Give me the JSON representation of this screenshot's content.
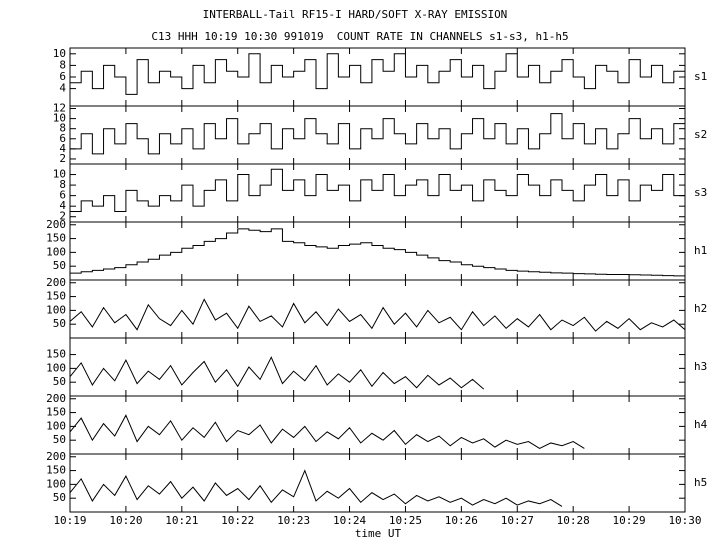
{
  "chart_data": [
    {
      "type": "step",
      "title": "INTERBALL-Tail RF15-I HARD/SOFT X-RAY EMISSION",
      "subtitle": "C13 HHH 10:19 10:30 991019  COUNT RATE IN CHANNELS s1-s3, h1-h5",
      "xlim": [
        0,
        11
      ],
      "ylim": [
        1,
        11
      ],
      "yticks": [
        4,
        6,
        8,
        10
      ],
      "x": [
        0,
        0.2,
        0.4,
        0.6,
        0.8,
        1,
        1.2,
        1.4,
        1.6,
        1.8,
        2,
        2.2,
        2.4,
        2.6,
        2.8,
        3,
        3.2,
        3.4,
        3.6,
        3.8,
        4,
        4.2,
        4.4,
        4.6,
        4.8,
        5,
        5.2,
        5.4,
        5.6,
        5.8,
        6,
        6.2,
        6.4,
        6.6,
        6.8,
        7,
        7.2,
        7.4,
        7.6,
        7.8,
        8,
        8.2,
        8.4,
        8.6,
        8.8,
        9,
        9.2,
        9.4,
        9.6,
        9.8,
        10,
        10.2,
        10.4,
        10.6,
        10.8,
        11
      ],
      "series": [
        {
          "name": "s1",
          "color": "#000000",
          "values": [
            5,
            7,
            4,
            8,
            6,
            3,
            9,
            5,
            7,
            6,
            4,
            8,
            5,
            9,
            7,
            6,
            10,
            5,
            8,
            6,
            7,
            9,
            4,
            10,
            6,
            8,
            5,
            9,
            7,
            10,
            6,
            8,
            5,
            7,
            9,
            6,
            8,
            4,
            7,
            10,
            6,
            8,
            5,
            7,
            9,
            6,
            4,
            8,
            7,
            5,
            9,
            6,
            8,
            5,
            7,
            10
          ]
        }
      ]
    },
    {
      "type": "step",
      "xlim": [
        0,
        11
      ],
      "ylim": [
        1,
        12.5
      ],
      "yticks": [
        2,
        4,
        6,
        8,
        10,
        12
      ],
      "x": [
        0,
        0.2,
        0.4,
        0.6,
        0.8,
        1,
        1.2,
        1.4,
        1.6,
        1.8,
        2,
        2.2,
        2.4,
        2.6,
        2.8,
        3,
        3.2,
        3.4,
        3.6,
        3.8,
        4,
        4.2,
        4.4,
        4.6,
        4.8,
        5,
        5.2,
        5.4,
        5.6,
        5.8,
        6,
        6.2,
        6.4,
        6.6,
        6.8,
        7,
        7.2,
        7.4,
        7.6,
        7.8,
        8,
        8.2,
        8.4,
        8.6,
        8.8,
        9,
        9.2,
        9.4,
        9.6,
        9.8,
        10,
        10.2,
        10.4,
        10.6,
        10.8,
        11
      ],
      "series": [
        {
          "name": "s2",
          "color": "#000000",
          "values": [
            4,
            7,
            3,
            8,
            5,
            9,
            6,
            3,
            7,
            5,
            8,
            4,
            9,
            6,
            10,
            5,
            7,
            9,
            4,
            8,
            6,
            10,
            7,
            5,
            9,
            4,
            8,
            6,
            10,
            7,
            5,
            9,
            6,
            8,
            4,
            7,
            10,
            6,
            9,
            5,
            8,
            4,
            7,
            11,
            6,
            9,
            5,
            8,
            4,
            7,
            10,
            6,
            8,
            5,
            9,
            6
          ]
        }
      ]
    },
    {
      "type": "step",
      "xlim": [
        0,
        11
      ],
      "ylim": [
        1,
        12
      ],
      "yticks": [
        2,
        4,
        6,
        8,
        10
      ],
      "x": [
        0,
        0.2,
        0.4,
        0.6,
        0.8,
        1,
        1.2,
        1.4,
        1.6,
        1.8,
        2,
        2.2,
        2.4,
        2.6,
        2.8,
        3,
        3.2,
        3.4,
        3.6,
        3.8,
        4,
        4.2,
        4.4,
        4.6,
        4.8,
        5,
        5.2,
        5.4,
        5.6,
        5.8,
        6,
        6.2,
        6.4,
        6.6,
        6.8,
        7,
        7.2,
        7.4,
        7.6,
        7.8,
        8,
        8.2,
        8.4,
        8.6,
        8.8,
        9,
        9.2,
        9.4,
        9.6,
        9.8,
        10,
        10.2,
        10.4,
        10.6,
        10.8,
        11
      ],
      "series": [
        {
          "name": "s3",
          "color": "#000000",
          "values": [
            3,
            5,
            4,
            6,
            3,
            7,
            5,
            4,
            6,
            5,
            8,
            4,
            7,
            9,
            5,
            10,
            6,
            8,
            11,
            7,
            9,
            6,
            10,
            7,
            8,
            5,
            9,
            7,
            10,
            6,
            8,
            9,
            6,
            10,
            7,
            8,
            5,
            9,
            7,
            6,
            10,
            8,
            6,
            9,
            7,
            5,
            8,
            10,
            6,
            9,
            5,
            8,
            7,
            10,
            6,
            9
          ]
        }
      ]
    },
    {
      "type": "step",
      "xlim": [
        0,
        11
      ],
      "ylim": [
        0,
        210
      ],
      "yticks": [
        50,
        100,
        150,
        200
      ],
      "x": [
        0,
        0.2,
        0.4,
        0.6,
        0.8,
        1,
        1.2,
        1.4,
        1.6,
        1.8,
        2,
        2.2,
        2.4,
        2.6,
        2.8,
        3,
        3.2,
        3.4,
        3.6,
        3.8,
        4,
        4.2,
        4.4,
        4.6,
        4.8,
        5,
        5.2,
        5.4,
        5.6,
        5.8,
        6,
        6.2,
        6.4,
        6.6,
        6.8,
        7,
        7.2,
        7.4,
        7.6,
        7.8,
        8,
        8.2,
        8.4,
        8.6,
        8.8,
        9,
        9.2,
        9.4,
        9.6,
        9.8,
        10,
        10.2,
        10.4,
        10.6,
        10.8,
        11
      ],
      "series": [
        {
          "name": "h1",
          "color": "#000000",
          "values": [
            25,
            30,
            35,
            40,
            45,
            55,
            65,
            75,
            90,
            100,
            115,
            125,
            140,
            150,
            170,
            185,
            180,
            175,
            185,
            140,
            135,
            125,
            120,
            115,
            125,
            130,
            135,
            125,
            115,
            110,
            100,
            90,
            80,
            70,
            65,
            55,
            50,
            45,
            40,
            35,
            32,
            30,
            28,
            26,
            25,
            23,
            22,
            21,
            20,
            20,
            19,
            18,
            17,
            16,
            15,
            14
          ]
        }
      ]
    },
    {
      "type": "line",
      "xlim": [
        0,
        11
      ],
      "ylim": [
        0,
        210
      ],
      "yticks": [
        50,
        100,
        150,
        200
      ],
      "x": [
        0,
        0.2,
        0.4,
        0.6,
        0.8,
        1,
        1.2,
        1.4,
        1.6,
        1.8,
        2,
        2.2,
        2.4,
        2.6,
        2.8,
        3,
        3.2,
        3.4,
        3.6,
        3.8,
        4,
        4.2,
        4.4,
        4.6,
        4.8,
        5,
        5.2,
        5.4,
        5.6,
        5.8,
        6,
        6.2,
        6.4,
        6.6,
        6.8,
        7,
        7.2,
        7.4,
        7.6,
        7.8,
        8,
        8.2,
        8.4,
        8.6,
        8.8,
        9,
        9.2,
        9.4,
        9.6,
        9.8,
        10,
        10.2,
        10.4,
        10.6,
        10.8,
        11
      ],
      "series": [
        {
          "name": "h2",
          "color": "#000000",
          "values": [
            60,
            95,
            40,
            110,
            55,
            85,
            30,
            120,
            70,
            45,
            100,
            50,
            140,
            65,
            90,
            35,
            115,
            60,
            80,
            40,
            125,
            55,
            95,
            45,
            105,
            60,
            85,
            35,
            110,
            50,
            90,
            40,
            100,
            55,
            75,
            30,
            95,
            45,
            80,
            35,
            70,
            40,
            85,
            30,
            65,
            45,
            75,
            25,
            60,
            35,
            70,
            30,
            55,
            40,
            65,
            30
          ]
        }
      ]
    },
    {
      "type": "line",
      "xlim": [
        0,
        11
      ],
      "ylim": [
        0,
        210
      ],
      "yticks": [
        50,
        100,
        150
      ],
      "x": [
        0,
        0.2,
        0.4,
        0.6,
        0.8,
        1,
        1.2,
        1.4,
        1.6,
        1.8,
        2,
        2.2,
        2.4,
        2.6,
        2.8,
        3,
        3.2,
        3.4,
        3.6,
        3.8,
        4,
        4.2,
        4.4,
        4.6,
        4.8,
        5,
        5.2,
        5.4,
        5.6,
        5.8,
        6,
        6.2,
        6.4,
        6.6,
        6.8,
        7,
        7.2,
        7.4
      ],
      "series": [
        {
          "name": "h3",
          "color": "#000000",
          "values": [
            70,
            120,
            40,
            100,
            55,
            130,
            45,
            90,
            60,
            110,
            40,
            85,
            125,
            50,
            95,
            35,
            105,
            60,
            140,
            45,
            90,
            55,
            110,
            40,
            80,
            50,
            95,
            35,
            85,
            45,
            70,
            30,
            75,
            40,
            65,
            30,
            60,
            25
          ]
        }
      ]
    },
    {
      "type": "line",
      "xlim": [
        0,
        11
      ],
      "ylim": [
        0,
        210
      ],
      "yticks": [
        50,
        100,
        150,
        200
      ],
      "x": [
        0,
        0.2,
        0.4,
        0.6,
        0.8,
        1,
        1.2,
        1.4,
        1.6,
        1.8,
        2,
        2.2,
        2.4,
        2.6,
        2.8,
        3,
        3.2,
        3.4,
        3.6,
        3.8,
        4,
        4.2,
        4.4,
        4.6,
        4.8,
        5,
        5.2,
        5.4,
        5.6,
        5.8,
        6,
        6.2,
        6.4,
        6.6,
        6.8,
        7,
        7.2,
        7.4,
        7.6,
        7.8,
        8,
        8.2,
        8.4,
        8.6,
        8.8,
        9,
        9.2
      ],
      "series": [
        {
          "name": "h4",
          "color": "#000000",
          "values": [
            80,
            130,
            50,
            110,
            65,
            140,
            45,
            100,
            70,
            120,
            50,
            95,
            60,
            115,
            45,
            85,
            70,
            105,
            40,
            90,
            60,
            100,
            45,
            80,
            55,
            95,
            40,
            75,
            50,
            85,
            35,
            70,
            45,
            65,
            30,
            60,
            40,
            55,
            25,
            50,
            35,
            45,
            20,
            40,
            30,
            45,
            20
          ]
        }
      ]
    },
    {
      "type": "line",
      "xlim": [
        0,
        11
      ],
      "ylim": [
        0,
        210
      ],
      "yticks": [
        50,
        100,
        150,
        200
      ],
      "xticks": [
        {
          "value": 0,
          "label": "10:19"
        },
        {
          "value": 1,
          "label": "10:20"
        },
        {
          "value": 2,
          "label": "10:21"
        },
        {
          "value": 3,
          "label": "10:22"
        },
        {
          "value": 4,
          "label": "10:23"
        },
        {
          "value": 5,
          "label": "10:24"
        },
        {
          "value": 6,
          "label": "10:25"
        },
        {
          "value": 7,
          "label": "10:26"
        },
        {
          "value": 8,
          "label": "10:27"
        },
        {
          "value": 9,
          "label": "10:28"
        },
        {
          "value": 10,
          "label": "10:29"
        },
        {
          "value": 11,
          "label": "10:30"
        }
      ],
      "x_label": "time UT",
      "x": [
        0,
        0.2,
        0.4,
        0.6,
        0.8,
        1,
        1.2,
        1.4,
        1.6,
        1.8,
        2,
        2.2,
        2.4,
        2.6,
        2.8,
        3,
        3.2,
        3.4,
        3.6,
        3.8,
        4,
        4.2,
        4.4,
        4.6,
        4.8,
        5,
        5.2,
        5.4,
        5.6,
        5.8,
        6,
        6.2,
        6.4,
        6.6,
        6.8,
        7,
        7.2,
        7.4,
        7.6,
        7.8,
        8,
        8.2,
        8.4,
        8.6,
        8.8
      ],
      "series": [
        {
          "name": "h5",
          "color": "#000000",
          "values": [
            70,
            120,
            40,
            100,
            60,
            130,
            45,
            95,
            65,
            110,
            50,
            90,
            40,
            105,
            60,
            85,
            45,
            95,
            35,
            80,
            55,
            150,
            40,
            75,
            50,
            85,
            35,
            70,
            45,
            65,
            30,
            60,
            40,
            55,
            35,
            50,
            25,
            45,
            30,
            50,
            25,
            40,
            30,
            45,
            20
          ]
        }
      ]
    }
  ]
}
